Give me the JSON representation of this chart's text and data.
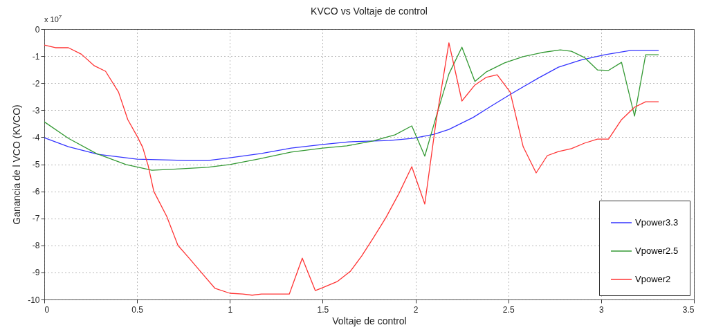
{
  "chart_data": {
    "type": "line",
    "title": "KVCO vs Voltaje de control",
    "xlabel": "Voltaje de control",
    "ylabel": "Ganancia de l VCO (KVCO)",
    "annotations": [
      "x 10$^{7}$"
    ],
    "xlim": [
      0,
      3.5
    ],
    "xticks": [
      0,
      0.5,
      1,
      1.5,
      2,
      2.5,
      3,
      3.5
    ],
    "ylim": [
      -10,
      0
    ],
    "yticks": [
      -10,
      -9,
      -8,
      -7,
      -6,
      -5,
      -4,
      -3,
      -2,
      -1,
      0
    ],
    "grid": true,
    "legend": "bottom right",
    "series": [
      {
        "name": "Vpower3.3",
        "color": "#3333ff",
        "x": [
          0,
          0.13,
          0.29,
          0.5,
          0.77,
          0.88,
          1.0,
          1.17,
          1.33,
          1.5,
          1.64,
          1.77,
          1.86,
          1.99,
          2.1,
          2.18,
          2.31,
          2.41,
          2.52,
          2.66,
          2.77,
          2.89,
          3.02,
          3.16,
          3.31
        ],
        "values": [
          -4.02,
          -4.35,
          -4.63,
          -4.81,
          -4.86,
          -4.86,
          -4.76,
          -4.6,
          -4.4,
          -4.27,
          -4.17,
          -4.14,
          -4.12,
          -4.04,
          -3.89,
          -3.71,
          -3.27,
          -2.84,
          -2.38,
          -1.82,
          -1.41,
          -1.15,
          -0.95,
          -0.79,
          -0.79
        ]
      },
      {
        "name": "Vpower2.5",
        "color": "#339933",
        "x": [
          0,
          0.13,
          0.28,
          0.44,
          0.58,
          0.73,
          0.88,
          1.0,
          1.15,
          1.33,
          1.5,
          1.63,
          1.77,
          1.89,
          1.98,
          2.05,
          2.11,
          2.18,
          2.25,
          2.32,
          2.38,
          2.48,
          2.58,
          2.68,
          2.78,
          2.84,
          2.91,
          2.98,
          3.04,
          3.11,
          3.18,
          3.24,
          3.31
        ],
        "values": [
          -3.43,
          -4.04,
          -4.6,
          -5.01,
          -5.22,
          -5.17,
          -5.11,
          -5.01,
          -4.81,
          -4.55,
          -4.4,
          -4.32,
          -4.14,
          -3.91,
          -3.58,
          -4.7,
          -3.27,
          -1.66,
          -0.67,
          -1.94,
          -1.59,
          -1.25,
          -1.02,
          -0.87,
          -0.77,
          -0.82,
          -1.05,
          -1.51,
          -1.53,
          -1.23,
          -3.22,
          -0.95,
          -0.95
        ]
      },
      {
        "name": "Vpower2",
        "color": "#ff3333",
        "x": [
          0,
          0.06,
          0.13,
          0.2,
          0.27,
          0.33,
          0.4,
          0.45,
          0.5,
          0.53,
          0.56,
          0.59,
          0.66,
          0.72,
          0.78,
          0.85,
          0.92,
          1.0,
          1.07,
          1.12,
          1.17,
          1.32,
          1.39,
          1.46,
          1.5,
          1.58,
          1.65,
          1.71,
          1.77,
          1.84,
          1.91,
          1.98,
          2.05,
          2.11,
          2.18,
          2.25,
          2.32,
          2.38,
          2.44,
          2.51,
          2.58,
          2.65,
          2.71,
          2.77,
          2.84,
          2.91,
          2.98,
          3.04,
          3.11,
          3.18,
          3.24,
          3.31
        ],
        "values": [
          -0.59,
          -0.69,
          -0.69,
          -0.93,
          -1.36,
          -1.56,
          -2.33,
          -3.35,
          -3.96,
          -4.37,
          -5.06,
          -6.0,
          -6.93,
          -8.0,
          -8.47,
          -9.03,
          -9.59,
          -9.77,
          -9.8,
          -9.84,
          -9.8,
          -9.8,
          -8.47,
          -9.67,
          -9.56,
          -9.33,
          -8.95,
          -8.39,
          -7.75,
          -6.98,
          -6.09,
          -5.09,
          -6.47,
          -3.45,
          -0.51,
          -2.66,
          -2.07,
          -1.79,
          -1.69,
          -2.33,
          -4.35,
          -5.32,
          -4.68,
          -4.53,
          -4.42,
          -4.22,
          -4.07,
          -4.07,
          -3.35,
          -2.89,
          -2.69,
          -2.69
        ]
      }
    ]
  }
}
